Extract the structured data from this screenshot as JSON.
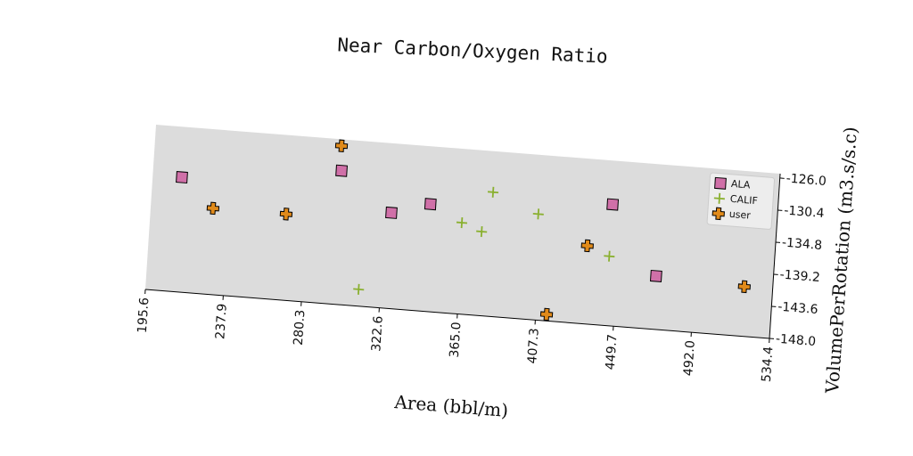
{
  "chart_data": {
    "type": "scatter",
    "title": "Near Carbon/Oxygen Ratio",
    "x_label": "Area (bbl/m)",
    "y_label": "VolumePerRotation (m3.s/s.c)",
    "xlim": [
      195.6,
      534.4
    ],
    "xticks": [
      195.6,
      237.9,
      280.3,
      322.6,
      {
        "value": 365,
        "label": "365.0"
      },
      407.3,
      449.7,
      {
        "value": 492,
        "label": "492.0"
      },
      534.4
    ],
    "ylim": [
      -148,
      -125.4
    ],
    "yticks": [
      {
        "value": -126,
        "label": "-126.0"
      },
      -130.4,
      -134.8,
      -139.2,
      -143.6,
      {
        "value": -148,
        "label": "-148.0"
      }
    ],
    "grid": false,
    "legend": "upper right",
    "series": [
      {
        "name": "ALA",
        "color": "#d070a8",
        "marker": "square",
        "x": [
          211.4,
          297.4,
          325.8,
          346.6,
          445.0,
          471.0
        ],
        "values": [
          -132.3,
          -129.7,
          -134.9,
          -133.3,
          -131.4,
          -140.7
        ]
      },
      {
        "name": "CALIF",
        "color": "#8ab030",
        "marker": "plus",
        "x": [
          380.0,
          364.2,
          375.2,
          405.2,
          445.0,
          310.8
        ],
        "values": [
          -131.0,
          -135.5,
          -136.5,
          -133.5,
          -138.5,
          -145.7
        ]
      },
      {
        "name": "user",
        "color": "#e08a1a",
        "marker": "thick-plus",
        "x": [
          296.5,
          229.3,
          269.0,
          432.8,
          413.2,
          519.0
        ],
        "values": [
          -126.3,
          -136.2,
          -136.2,
          -137.3,
          -147.1,
          -141.2
        ]
      }
    ]
  }
}
